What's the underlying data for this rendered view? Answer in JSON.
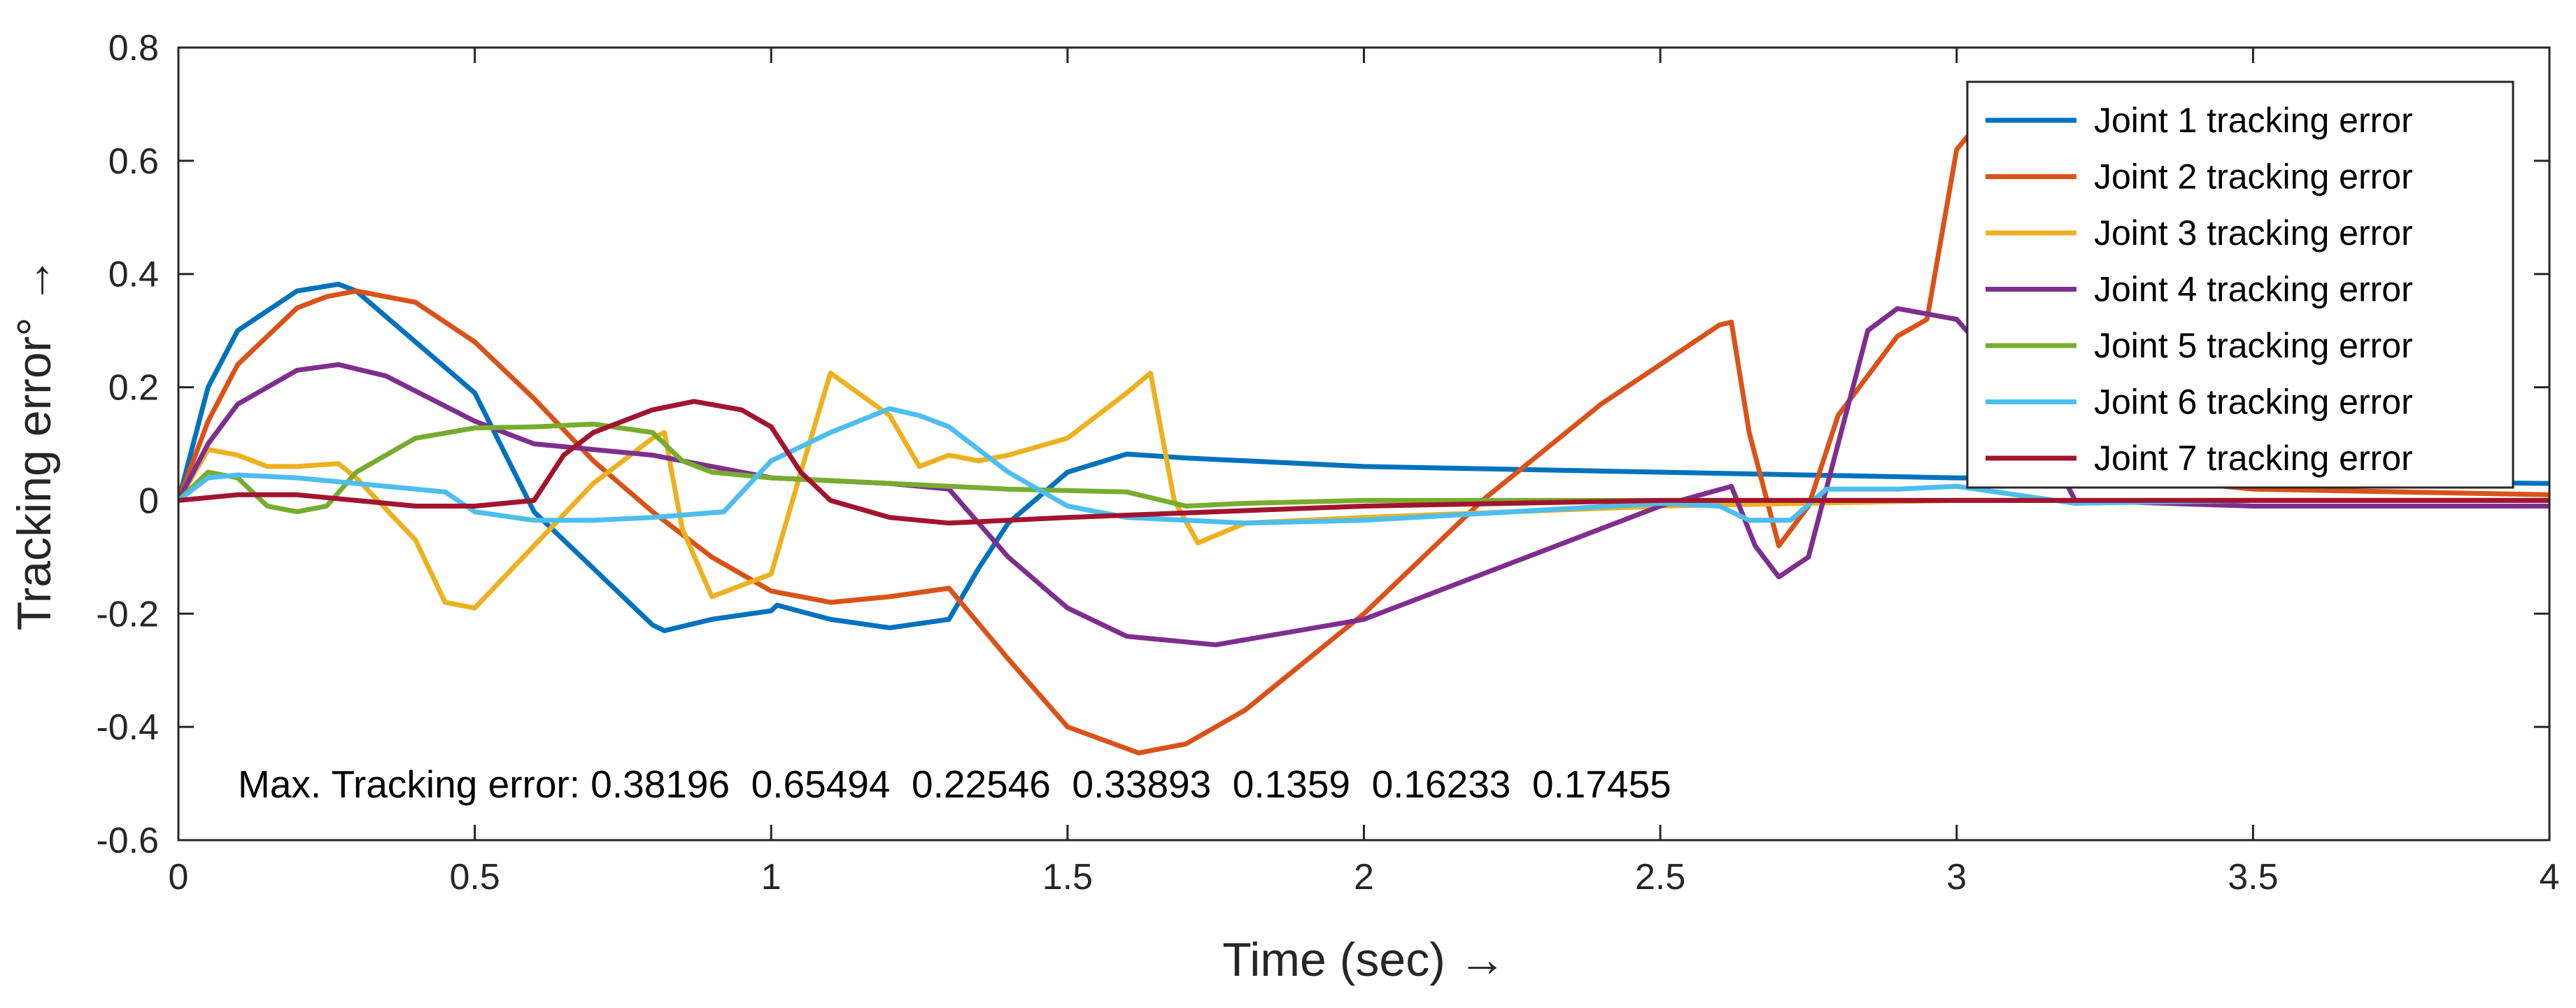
{
  "chart_data": {
    "type": "line",
    "xlabel": "Time (sec) →",
    "ylabel": "Tracking error° →",
    "xlim": [
      0,
      4
    ],
    "ylim": [
      -0.6,
      0.8
    ],
    "xticks": [
      "0",
      "0.5",
      "1",
      "1.5",
      "2",
      "2.5",
      "3",
      "3.5",
      "4"
    ],
    "yticks": [
      "-0.6",
      "-0.4",
      "-0.2",
      "0",
      "0.2",
      "0.4",
      "0.6",
      "0.8"
    ],
    "grid": false,
    "legend_position": "top-right",
    "annotation": "Max. Tracking error: 0.38196  0.65494  0.22546  0.33893  0.1359  0.16233  0.17455",
    "series": [
      {
        "name": "Joint 1 tracking error",
        "color": "#0072BD",
        "x": [
          0,
          0.05,
          0.1,
          0.2,
          0.27,
          0.3,
          0.4,
          0.5,
          0.6,
          0.7,
          0.8,
          0.82,
          0.9,
          1.0,
          1.01,
          1.1,
          1.2,
          1.3,
          1.35,
          1.4,
          1.5,
          1.6,
          1.7,
          2.0,
          2.5,
          3.0,
          3.5,
          4.0
        ],
        "y": [
          0,
          0.2,
          0.3,
          0.37,
          0.382,
          0.37,
          0.28,
          0.19,
          -0.02,
          -0.12,
          -0.22,
          -0.23,
          -0.21,
          -0.195,
          -0.185,
          -0.21,
          -0.225,
          -0.21,
          -0.12,
          -0.04,
          0.05,
          0.082,
          0.075,
          0.06,
          0.05,
          0.04,
          0.035,
          0.03
        ]
      },
      {
        "name": "Joint 2 tracking error",
        "color": "#D95319",
        "x": [
          0,
          0.05,
          0.1,
          0.2,
          0.25,
          0.3,
          0.4,
          0.5,
          0.6,
          0.7,
          0.8,
          0.9,
          1.0,
          1.1,
          1.2,
          1.3,
          1.4,
          1.5,
          1.62,
          1.7,
          1.8,
          2.0,
          2.2,
          2.4,
          2.6,
          2.62,
          2.65,
          2.7,
          2.75,
          2.8,
          2.9,
          2.95,
          3.0,
          3.02,
          3.1,
          3.2,
          3.5,
          4.0
        ],
        "y": [
          0,
          0.14,
          0.24,
          0.34,
          0.36,
          0.37,
          0.35,
          0.28,
          0.18,
          0.07,
          -0.02,
          -0.1,
          -0.16,
          -0.18,
          -0.17,
          -0.155,
          -0.28,
          -0.4,
          -0.446,
          -0.43,
          -0.37,
          -0.2,
          0,
          0.17,
          0.31,
          0.315,
          0.12,
          -0.08,
          -0.01,
          0.15,
          0.29,
          0.32,
          0.62,
          0.645,
          0.5,
          0.05,
          0.02,
          0.01
        ]
      },
      {
        "name": "Joint 3 tracking error",
        "color": "#EDB120",
        "x": [
          0,
          0.05,
          0.1,
          0.15,
          0.2,
          0.27,
          0.3,
          0.4,
          0.45,
          0.5,
          0.6,
          0.7,
          0.8,
          0.82,
          0.85,
          0.9,
          1.0,
          1.05,
          1.1,
          1.2,
          1.25,
          1.3,
          1.35,
          1.4,
          1.5,
          1.6,
          1.64,
          1.68,
          1.72,
          1.8,
          2.0,
          2.5,
          3.0,
          3.5,
          4.0
        ],
        "y": [
          0,
          0.09,
          0.08,
          0.06,
          0.06,
          0.065,
          0.04,
          -0.07,
          -0.18,
          -0.19,
          -0.08,
          0.03,
          0.11,
          0.12,
          -0.05,
          -0.17,
          -0.13,
          0.05,
          0.225,
          0.15,
          0.06,
          0.08,
          0.07,
          0.08,
          0.11,
          0.19,
          0.225,
          0.0,
          -0.075,
          -0.04,
          -0.03,
          -0.01,
          0.0,
          0.0,
          0.0
        ]
      },
      {
        "name": "Joint 4 tracking error",
        "color": "#7E2F8E",
        "x": [
          0,
          0.05,
          0.1,
          0.2,
          0.27,
          0.35,
          0.5,
          0.6,
          0.8,
          1.0,
          1.2,
          1.3,
          1.4,
          1.5,
          1.6,
          1.75,
          2.0,
          2.5,
          2.62,
          2.66,
          2.7,
          2.75,
          2.8,
          2.85,
          2.9,
          3.0,
          3.1,
          3.2,
          3.5,
          4.0
        ],
        "y": [
          0,
          0.1,
          0.17,
          0.23,
          0.24,
          0.22,
          0.14,
          0.1,
          0.08,
          0.04,
          0.03,
          0.02,
          -0.1,
          -0.19,
          -0.24,
          -0.255,
          -0.21,
          -0.01,
          0.025,
          -0.08,
          -0.135,
          -0.1,
          0.1,
          0.3,
          0.339,
          0.32,
          0.2,
          0.0,
          -0.01,
          -0.01
        ]
      },
      {
        "name": "Joint 5 tracking error",
        "color": "#77AC30",
        "x": [
          0,
          0.05,
          0.1,
          0.15,
          0.2,
          0.25,
          0.3,
          0.4,
          0.5,
          0.6,
          0.7,
          0.8,
          0.85,
          0.9,
          1.0,
          1.2,
          1.4,
          1.6,
          1.7,
          1.8,
          2.0,
          2.5,
          3.0,
          3.5,
          4.0
        ],
        "y": [
          0,
          0.05,
          0.04,
          -0.01,
          -0.02,
          -0.01,
          0.05,
          0.11,
          0.128,
          0.13,
          0.135,
          0.12,
          0.07,
          0.05,
          0.04,
          0.03,
          0.02,
          0.015,
          -0.01,
          -0.005,
          0.0,
          0.0,
          0.0,
          0.0,
          0.0
        ]
      },
      {
        "name": "Joint 6 tracking error",
        "color": "#4DBEEE",
        "x": [
          0,
          0.05,
          0.1,
          0.2,
          0.3,
          0.45,
          0.5,
          0.6,
          0.7,
          0.8,
          0.92,
          1.0,
          1.1,
          1.2,
          1.25,
          1.3,
          1.4,
          1.5,
          1.6,
          1.8,
          2.0,
          2.5,
          2.6,
          2.65,
          2.72,
          2.78,
          2.9,
          3.0,
          3.2,
          3.5,
          4.0
        ],
        "y": [
          0,
          0.04,
          0.045,
          0.04,
          0.03,
          0.015,
          -0.02,
          -0.035,
          -0.035,
          -0.03,
          -0.02,
          0.07,
          0.12,
          0.162,
          0.15,
          0.13,
          0.05,
          -0.01,
          -0.03,
          -0.04,
          -0.035,
          -0.005,
          -0.01,
          -0.035,
          -0.035,
          0.02,
          0.02,
          0.025,
          -0.005,
          0.0,
          0.0
        ]
      },
      {
        "name": "Joint 7 tracking error",
        "color": "#A2142F",
        "x": [
          0,
          0.1,
          0.2,
          0.3,
          0.4,
          0.5,
          0.6,
          0.65,
          0.7,
          0.8,
          0.87,
          0.95,
          1.0,
          1.05,
          1.1,
          1.2,
          1.3,
          1.5,
          2.0,
          2.5,
          3.0,
          4.0
        ],
        "y": [
          0,
          0.01,
          0.01,
          0.0,
          -0.01,
          -0.01,
          0.0,
          0.08,
          0.12,
          0.16,
          0.175,
          0.16,
          0.13,
          0.05,
          0.0,
          -0.03,
          -0.04,
          -0.03,
          -0.01,
          0.0,
          0.0,
          0.0
        ]
      }
    ]
  }
}
